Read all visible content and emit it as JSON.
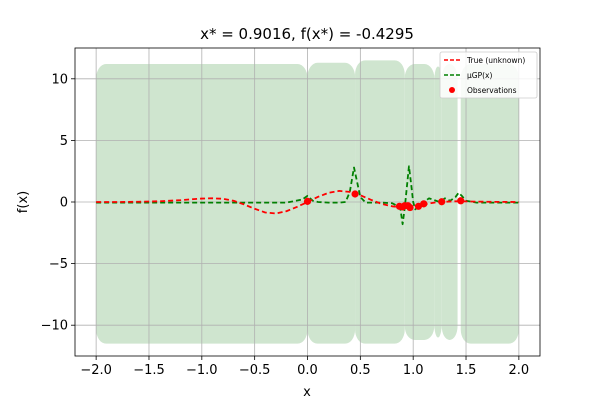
{
  "chart_data": {
    "type": "line",
    "title": "x* = 0.9016, f(x*) = -0.4295",
    "xlabel": "x",
    "ylabel": "f(x)",
    "xlim": [
      -2.2,
      2.2
    ],
    "ylim": [
      -12.5,
      12.5
    ],
    "xticks": [
      -2.0,
      -1.5,
      -1.0,
      -0.5,
      0.0,
      0.5,
      1.0,
      1.5,
      2.0
    ],
    "xtick_labels": [
      "−2.0",
      "−1.5",
      "−1.0",
      "−0.5",
      "0.0",
      "0.5",
      "1.0",
      "1.5",
      "2.0"
    ],
    "yticks": [
      -10,
      -5,
      0,
      5,
      10
    ],
    "ytick_labels": [
      "−10",
      "−5",
      "0",
      "5",
      "10"
    ],
    "grid": true,
    "legend_position": "top-right",
    "colors": {
      "true": "#ff0000",
      "gp": "#008000",
      "band": "#cfe5cf",
      "observations": "#ff0000",
      "grid": "#b0b0b0"
    },
    "series": [
      {
        "name": "True (unknown)",
        "style": "dashed",
        "x": [
          -2.0,
          -1.8,
          -1.6,
          -1.4,
          -1.2,
          -1.0,
          -0.9,
          -0.8,
          -0.7,
          -0.6,
          -0.5,
          -0.4,
          -0.3,
          -0.2,
          -0.1,
          0.0,
          0.1,
          0.2,
          0.3,
          0.4,
          0.5,
          0.6,
          0.7,
          0.8,
          0.9,
          1.0,
          1.1,
          1.2,
          1.3,
          1.4,
          1.5,
          1.6,
          1.8,
          2.0
        ],
        "values": [
          0.0,
          0.0,
          0.02,
          0.06,
          0.15,
          0.28,
          0.3,
          0.26,
          0.1,
          -0.2,
          -0.55,
          -0.85,
          -0.93,
          -0.75,
          -0.4,
          0.0,
          0.42,
          0.75,
          0.9,
          0.82,
          0.55,
          0.18,
          -0.15,
          -0.35,
          -0.43,
          -0.35,
          -0.2,
          -0.05,
          0.02,
          0.06,
          0.05,
          0.03,
          0.01,
          0.0
        ]
      },
      {
        "name": "μGP(x)",
        "style": "dashed",
        "x": [
          -2.0,
          -1.0,
          -0.2,
          -0.05,
          0.0,
          0.05,
          0.1,
          0.2,
          0.3,
          0.36,
          0.4,
          0.44,
          0.47,
          0.5,
          0.55,
          0.6,
          0.7,
          0.8,
          0.85,
          0.88,
          0.9,
          0.92,
          0.94,
          0.96,
          0.98,
          1.0,
          1.02,
          1.05,
          1.1,
          1.15,
          1.2,
          1.25,
          1.3,
          1.35,
          1.4,
          1.43,
          1.46,
          1.5,
          1.6,
          1.8,
          2.0
        ],
        "values": [
          -0.05,
          -0.05,
          -0.05,
          0.2,
          0.5,
          0.1,
          0.0,
          -0.05,
          -0.05,
          0.0,
          0.8,
          2.8,
          1.6,
          0.4,
          -0.05,
          -0.05,
          -0.05,
          -0.1,
          -0.3,
          -0.6,
          -1.8,
          -0.5,
          1.2,
          2.9,
          1.5,
          0.0,
          -0.6,
          -0.3,
          0.0,
          0.3,
          0.15,
          0.0,
          0.3,
          0.1,
          0.4,
          0.75,
          0.5,
          0.1,
          -0.05,
          -0.05,
          -0.05
        ]
      }
    ],
    "confidence_band": {
      "segments": [
        {
          "x": [
            -2.0,
            0.0
          ],
          "upper": 11.2,
          "lower": -11.5
        },
        {
          "x": [
            0.0,
            0.45
          ],
          "upper": 11.3,
          "lower": -11.5
        },
        {
          "x": [
            0.45,
            0.92
          ],
          "upper": 11.5,
          "lower": -11.5
        },
        {
          "x": [
            0.92,
            1.2
          ],
          "upper": 11.2,
          "lower": -11.2
        },
        {
          "x": [
            1.2,
            1.27
          ],
          "upper": 11.0,
          "lower": -11.0
        },
        {
          "x": [
            1.27,
            1.42
          ],
          "upper": 11.2,
          "lower": -11.2
        },
        {
          "x": [
            1.45,
            2.0
          ],
          "upper": 11.2,
          "lower": -11.5
        }
      ]
    },
    "observations": {
      "name": "Observations",
      "x": [
        0.0,
        0.45,
        0.87,
        0.9,
        0.92,
        0.95,
        0.97,
        1.05,
        1.1,
        1.27,
        1.45
      ],
      "values": [
        0.05,
        0.65,
        -0.35,
        -0.4,
        -0.3,
        -0.3,
        -0.45,
        -0.35,
        -0.15,
        0.02,
        0.1
      ]
    }
  }
}
